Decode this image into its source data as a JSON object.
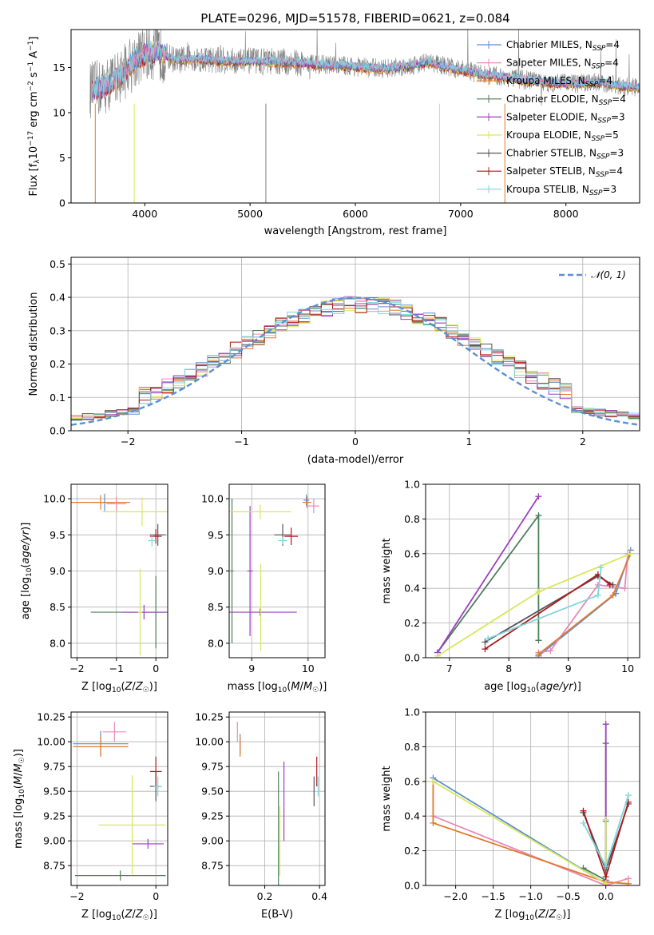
{
  "title": "PLATE=0296, MJD=51578, FIBERID=0621, z=0.084",
  "colors": {
    "Chabrier MILES": "#5b8fd6",
    "Salpeter MILES": "#e88ab8",
    "Kroupa MILES": "#e07b2e",
    "Chabrier ELODIE": "#4d7f5a",
    "Salpeter ELODIE": "#9b3fc0",
    "Kroupa ELODIE": "#d7e85a",
    "Chabrier STELIB": "#555555",
    "Salpeter STELIB": "#b01820",
    "Kroupa STELIB": "#7fd6dc"
  },
  "legend1": [
    {
      "model": "Chabrier MILES",
      "name": "Chabrier MILES, N",
      "sub": "SSP",
      "suffix": "=4"
    },
    {
      "model": "Salpeter MILES",
      "name": "Salpeter MILES, N",
      "sub": "SSP",
      "suffix": "=4"
    },
    {
      "model": "Kroupa MILES",
      "name": "Kroupa MILES, N",
      "sub": "SSP",
      "suffix": "=4"
    },
    {
      "model": "Chabrier ELODIE",
      "name": "Chabrier ELODIE, N",
      "sub": "SSP",
      "suffix": "=4"
    },
    {
      "model": "Salpeter ELODIE",
      "name": "Salpeter ELODIE, N",
      "sub": "SSP",
      "suffix": "=3"
    },
    {
      "model": "Kroupa ELODIE",
      "name": "Kroupa ELODIE, N",
      "sub": "SSP",
      "suffix": "=5"
    },
    {
      "model": "Chabrier STELIB",
      "name": "Chabrier STELIB, N",
      "sub": "SSP",
      "suffix": "=3"
    },
    {
      "model": "Salpeter STELIB",
      "name": "Salpeter STELIB, N",
      "sub": "SSP",
      "suffix": "=4"
    },
    {
      "model": "Kroupa STELIB",
      "name": "Kroupa STELIB, N",
      "sub": "SSP",
      "suffix": "=3"
    }
  ],
  "legend2": {
    "label": "𝒩(0, 1)",
    "color": "#5b8fd6"
  },
  "chart_data": [
    {
      "id": "spectrum",
      "type": "line",
      "title": "PLATE=0296, MJD=51578, FIBERID=0621, z=0.084",
      "xlabel": "wavelength [Angstrom, rest frame]",
      "ylabel": "Flux [f_λ 10^-17 erg cm^-2 s^-1 A^-1]",
      "xlim": [
        3300,
        8700
      ],
      "ylim": [
        0,
        19.2
      ],
      "xticks": [
        4000,
        5000,
        6000,
        7000,
        8000
      ],
      "yticks": [
        0,
        5,
        10,
        15
      ],
      "grid": false,
      "continuum_x": [
        3480,
        3600,
        3700,
        3800,
        3900,
        4000,
        4100,
        4200,
        4300,
        4400,
        4500,
        4700,
        4900,
        5100,
        5300,
        5500,
        5700,
        5900,
        6100,
        6300,
        6500,
        6700,
        6900,
        7100,
        7300,
        7500,
        7700,
        7900,
        8100,
        8300,
        8500,
        8700
      ],
      "continuum_y": [
        12.5,
        12.8,
        13.5,
        14.5,
        15.8,
        16.5,
        16.8,
        16.3,
        15.8,
        15.9,
        16.0,
        15.8,
        15.7,
        15.7,
        15.6,
        15.5,
        15.3,
        15.2,
        15.0,
        14.9,
        15.2,
        15.6,
        15.0,
        14.5,
        14.1,
        13.8,
        13.5,
        13.3,
        13.2,
        13.4,
        13.0,
        12.8
      ]
    },
    {
      "id": "residuals",
      "type": "histogram",
      "xlabel": "(data-model)/error",
      "ylabel": "Normed distribution",
      "xlim": [
        -2.5,
        2.5
      ],
      "ylim": [
        0,
        0.52
      ],
      "xticks": [
        -2,
        -1,
        0,
        1,
        2
      ],
      "yticks": [
        0.0,
        0.1,
        0.2,
        0.3,
        0.4,
        0.5
      ],
      "grid": true,
      "reference": "N(0,1)"
    },
    {
      "id": "age_vs_Z",
      "type": "errorbar",
      "xlabel": "Z [log10(Z/Z☉)]",
      "ylabel": "age [log10(age/yr)]",
      "xlim": [
        -2.15,
        0.3
      ],
      "ylim": [
        7.8,
        10.2
      ],
      "xticks": [
        -2,
        -1,
        0
      ],
      "yticks": [
        8.0,
        8.5,
        9.0,
        9.5,
        10.0
      ],
      "points": [
        {
          "model": "Chabrier MILES",
          "x": -1.3,
          "y": 9.95,
          "xerr": 0.25,
          "yerr": 0.12
        },
        {
          "model": "Salpeter MILES",
          "x": -1.0,
          "y": 9.93,
          "xerr": 0.25,
          "yerr": 0.1
        },
        {
          "model": "Kroupa MILES",
          "x": -1.4,
          "y": 9.95,
          "xerr": 0.75,
          "yerr": 0.1
        },
        {
          "model": "Chabrier ELODIE",
          "x": 0.0,
          "y": 8.43,
          "xerr": 1.65,
          "yerr": 0.5
        },
        {
          "model": "Salpeter ELODIE",
          "x": -0.3,
          "y": 8.43,
          "xerr": 0.55,
          "yerr": 0.1
        },
        {
          "model": "Kroupa ELODIE",
          "x": -0.35,
          "y": 9.82,
          "xerr": 1.0,
          "yerr": 0.2
        },
        {
          "model": "Kroupa ELODIE",
          "x": -0.4,
          "y": 8.43,
          "xerr": 0.05,
          "yerr": 0.6
        },
        {
          "model": "Chabrier STELIB",
          "x": 0.05,
          "y": 9.5,
          "xerr": 0.2,
          "yerr": 0.15
        },
        {
          "model": "Salpeter STELIB",
          "x": 0.0,
          "y": 9.48,
          "xerr": 0.15,
          "yerr": 0.1
        },
        {
          "model": "Kroupa STELIB",
          "x": -0.1,
          "y": 9.42,
          "xerr": 0.1,
          "yerr": 0.08
        }
      ]
    },
    {
      "id": "age_vs_mass",
      "type": "errorbar",
      "xlabel": "mass [log10(M/M☉)]",
      "ylabel": "",
      "xlim": [
        8.6,
        10.3
      ],
      "ylim": [
        7.8,
        10.2
      ],
      "xticks": [
        9,
        10
      ],
      "yticks": [
        8.0,
        8.5,
        9.0,
        9.5,
        10.0
      ],
      "points": [
        {
          "model": "Chabrier MILES",
          "x": 9.97,
          "y": 9.98,
          "xerr": 0.05,
          "yerr": 0.08
        },
        {
          "model": "Salpeter MILES",
          "x": 10.1,
          "y": 9.9,
          "xerr": 0.1,
          "yerr": 0.1
        },
        {
          "model": "Kroupa MILES",
          "x": 9.98,
          "y": 9.95,
          "xerr": 0.08,
          "yerr": 0.08
        },
        {
          "model": "Chabrier ELODIE",
          "x": 8.65,
          "y": 9.0,
          "xerr": 0.03,
          "yerr": 1.0
        },
        {
          "model": "Salpeter ELODIE",
          "x": 8.97,
          "y": 9.0,
          "xerr": 0.05,
          "yerr": 0.9
        },
        {
          "model": "Salpeter ELODIE",
          "x": 9.15,
          "y": 8.43,
          "xerr": 0.65,
          "yerr": 0.05
        },
        {
          "model": "Kroupa ELODIE",
          "x": 9.15,
          "y": 9.82,
          "xerr": 0.55,
          "yerr": 0.1
        },
        {
          "model": "Kroupa ELODIE",
          "x": 9.16,
          "y": 8.5,
          "xerr": 0.03,
          "yerr": 0.6
        },
        {
          "model": "Chabrier STELIB",
          "x": 9.55,
          "y": 9.5,
          "xerr": 0.15,
          "yerr": 0.15
        },
        {
          "model": "Salpeter STELIB",
          "x": 9.7,
          "y": 9.48,
          "xerr": 0.12,
          "yerr": 0.12
        },
        {
          "model": "Kroupa STELIB",
          "x": 9.55,
          "y": 9.42,
          "xerr": 0.08,
          "yerr": 0.05
        }
      ]
    },
    {
      "id": "weight_vs_age",
      "type": "line",
      "xlabel": "age [log10(age/yr)]",
      "ylabel": "mass weight",
      "xlim": [
        6.6,
        10.2
      ],
      "ylim": [
        0,
        1.0
      ],
      "xticks": [
        7,
        8,
        9,
        10
      ],
      "yticks": [
        0.0,
        0.2,
        0.4,
        0.6,
        0.8,
        1.0
      ],
      "series": [
        {
          "model": "Chabrier MILES",
          "x": [
            8.5,
            9.8,
            10.05
          ],
          "y": [
            0.01,
            0.37,
            0.62
          ]
        },
        {
          "model": "Salpeter MILES",
          "x": [
            8.5,
            8.7,
            9.5,
            9.95,
            10.0
          ],
          "y": [
            0.03,
            0.04,
            0.42,
            0.4,
            0.6
          ]
        },
        {
          "model": "Kroupa MILES",
          "x": [
            8.5,
            9.75,
            10.05
          ],
          "y": [
            0.02,
            0.36,
            0.6
          ]
        },
        {
          "model": "Chabrier ELODIE",
          "x": [
            6.8,
            8.5,
            8.5
          ],
          "y": [
            0.03,
            0.82,
            0.1
          ]
        },
        {
          "model": "Salpeter ELODIE",
          "x": [
            6.8,
            8.5
          ],
          "y": [
            0.03,
            0.93
          ]
        },
        {
          "model": "Kroupa ELODIE",
          "x": [
            6.8,
            8.5,
            10.05
          ],
          "y": [
            0.01,
            0.38,
            0.6
          ]
        },
        {
          "model": "Chabrier STELIB",
          "x": [
            7.6,
            9.5,
            9.75
          ],
          "y": [
            0.09,
            0.47,
            0.42
          ]
        },
        {
          "model": "Salpeter STELIB",
          "x": [
            7.6,
            9.5,
            9.7
          ],
          "y": [
            0.05,
            0.48,
            0.42
          ]
        },
        {
          "model": "Kroupa STELIB",
          "x": [
            7.65,
            9.5,
            9.55
          ],
          "y": [
            0.11,
            0.36,
            0.52
          ]
        }
      ]
    },
    {
      "id": "mass_vs_Z",
      "type": "errorbar",
      "xlabel": "Z [log10(Z/Z☉)]",
      "ylabel": "mass [log10(M/M☉)]",
      "xlim": [
        -2.15,
        0.3
      ],
      "ylim": [
        8.55,
        10.3
      ],
      "xticks": [
        -2,
        0
      ],
      "yticks": [
        8.75,
        9.0,
        9.25,
        9.5,
        9.75,
        10.0,
        10.25
      ],
      "points": [
        {
          "model": "Chabrier MILES",
          "x": -1.4,
          "y": 9.98,
          "xerr": 0.7,
          "yerr": 0.13
        },
        {
          "model": "Salpeter MILES",
          "x": -1.05,
          "y": 10.1,
          "xerr": 0.3,
          "yerr": 0.1
        },
        {
          "model": "Kroupa MILES",
          "x": -1.4,
          "y": 9.95,
          "xerr": 0.7,
          "yerr": 0.1
        },
        {
          "model": "Chabrier ELODIE",
          "x": -0.9,
          "y": 8.65,
          "xerr": 1.15,
          "yerr": 0.05
        },
        {
          "model": "Salpeter ELODIE",
          "x": -0.2,
          "y": 8.97,
          "xerr": 0.4,
          "yerr": 0.05
        },
        {
          "model": "Kroupa ELODIE",
          "x": -0.6,
          "y": 9.16,
          "xerr": 0.85,
          "yerr": 0.5
        },
        {
          "model": "Chabrier STELIB",
          "x": 0.0,
          "y": 9.55,
          "xerr": 0.15,
          "yerr": 0.15
        },
        {
          "model": "Salpeter STELIB",
          "x": 0.0,
          "y": 9.7,
          "xerr": 0.15,
          "yerr": 0.15
        },
        {
          "model": "Kroupa STELIB",
          "x": 0.05,
          "y": 9.55,
          "xerr": 0.1,
          "yerr": 0.1
        }
      ]
    },
    {
      "id": "mass_vs_ebv",
      "type": "errorbar",
      "xlabel": "E(B-V)",
      "ylabel": "",
      "xlim": [
        0.07,
        0.42
      ],
      "ylim": [
        8.55,
        10.3
      ],
      "xticks": [
        0.2,
        0.4
      ],
      "yticks": [
        8.75,
        9.0,
        9.25,
        9.5,
        9.75,
        10.0,
        10.25
      ],
      "points": [
        {
          "model": "Salpeter MILES",
          "x": 0.1,
          "y": 10.1,
          "xerr": 0.0,
          "yerr": 0.1
        },
        {
          "model": "Chabrier MILES",
          "x": 0.11,
          "y": 9.98,
          "xerr": 0.0,
          "yerr": 0.1
        },
        {
          "model": "Kroupa MILES",
          "x": 0.11,
          "y": 9.95,
          "xerr": 0.0,
          "yerr": 0.1
        },
        {
          "model": "Chabrier ELODIE",
          "x": 0.25,
          "y": 9.0,
          "xerr": 0.0,
          "yerr": 0.7
        },
        {
          "model": "Kroupa ELODIE",
          "x": 0.255,
          "y": 9.0,
          "xerr": 0.0,
          "yerr": 0.35
        },
        {
          "model": "Salpeter ELODIE",
          "x": 0.27,
          "y": 9.4,
          "xerr": 0.0,
          "yerr": 0.4
        },
        {
          "model": "Chabrier STELIB",
          "x": 0.38,
          "y": 9.5,
          "xerr": 0.0,
          "yerr": 0.15
        },
        {
          "model": "Salpeter STELIB",
          "x": 0.39,
          "y": 9.7,
          "xerr": 0.0,
          "yerr": 0.15
        },
        {
          "model": "Kroupa STELIB",
          "x": 0.395,
          "y": 9.55,
          "xerr": 0.0,
          "yerr": 0.1
        }
      ]
    },
    {
      "id": "weight_vs_Z",
      "type": "line",
      "xlabel": "Z [log10(Z/Z☉)]",
      "ylabel": "mass weight",
      "xlim": [
        -2.4,
        0.45
      ],
      "ylim": [
        0,
        1.0
      ],
      "xticks": [
        -2.0,
        -1.5,
        -1.0,
        -0.5,
        0.0
      ],
      "yticks": [
        0.0,
        0.2,
        0.4,
        0.6,
        0.8,
        1.0
      ],
      "series": [
        {
          "model": "Chabrier MILES",
          "x": [
            -2.3,
            0.0,
            0.0
          ],
          "y": [
            0.62,
            0.01,
            0.37
          ]
        },
        {
          "model": "Salpeter MILES",
          "x": [
            -2.3,
            0.0,
            0.3
          ],
          "y": [
            0.4,
            0.0,
            0.04
          ]
        },
        {
          "model": "Kroupa MILES",
          "x": [
            -2.3,
            -2.3,
            0.0,
            0.3
          ],
          "y": [
            0.6,
            0.36,
            0.02,
            0.01
          ]
        },
        {
          "model": "Chabrier ELODIE",
          "x": [
            -0.3,
            0.0,
            0.0
          ],
          "y": [
            0.1,
            0.03,
            0.82
          ]
        },
        {
          "model": "Salpeter ELODIE",
          "x": [
            0.0,
            0.0
          ],
          "y": [
            0.03,
            0.93
          ]
        },
        {
          "model": "Kroupa ELODIE",
          "x": [
            -2.3,
            0.0,
            0.0
          ],
          "y": [
            0.6,
            0.01,
            0.38
          ]
        },
        {
          "model": "Chabrier STELIB",
          "x": [
            -0.3,
            0.0,
            0.3
          ],
          "y": [
            0.42,
            0.09,
            0.47
          ]
        },
        {
          "model": "Salpeter STELIB",
          "x": [
            -0.3,
            0.0,
            0.3
          ],
          "y": [
            0.43,
            0.05,
            0.48
          ]
        },
        {
          "model": "Kroupa STELIB",
          "x": [
            -0.3,
            0.0,
            0.3
          ],
          "y": [
            0.36,
            0.11,
            0.52
          ]
        }
      ]
    }
  ]
}
